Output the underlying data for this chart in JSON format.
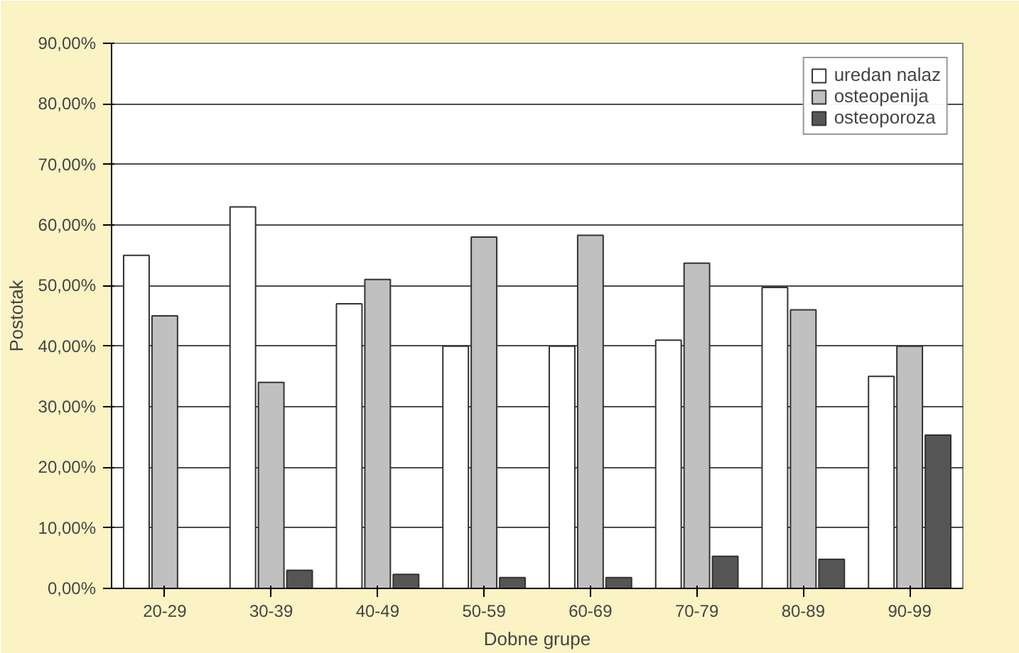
{
  "chart_data": {
    "type": "bar",
    "xlabel": "Dobne grupe",
    "ylabel": "Postotak",
    "categories": [
      "20-29",
      "30-39",
      "40-49",
      "50-59",
      "60-69",
      "70-79",
      "80-89",
      "90-99"
    ],
    "series": [
      {
        "name": "uredan nalaz",
        "color": "#ffffff",
        "values": [
          55,
          63,
          47,
          40,
          40,
          41,
          49.7,
          35
        ]
      },
      {
        "name": "osteopenija",
        "color": "#c0c0c0",
        "values": [
          45,
          34,
          51,
          58,
          58.3,
          53.7,
          46,
          40
        ]
      },
      {
        "name": "osteoporoza",
        "color": "#555555",
        "values": [
          null,
          3,
          2.3,
          1.8,
          1.8,
          5.3,
          4.8,
          25.3
        ]
      }
    ],
    "ylim": [
      0,
      90
    ],
    "yticks": [
      {
        "value": 0,
        "label": "0,00%"
      },
      {
        "value": 10,
        "label": "10,00%"
      },
      {
        "value": 20,
        "label": "20,00%"
      },
      {
        "value": 30,
        "label": "30,00%"
      },
      {
        "value": 40,
        "label": "40,00%"
      },
      {
        "value": 50,
        "label": "50,00%"
      },
      {
        "value": 60,
        "label": "60,00%"
      },
      {
        "value": 70,
        "label": "70,00%"
      },
      {
        "value": 80,
        "label": "80,00%"
      },
      {
        "value": 90,
        "label": "90,00%"
      }
    ],
    "grid": "y",
    "legend": "top right"
  }
}
